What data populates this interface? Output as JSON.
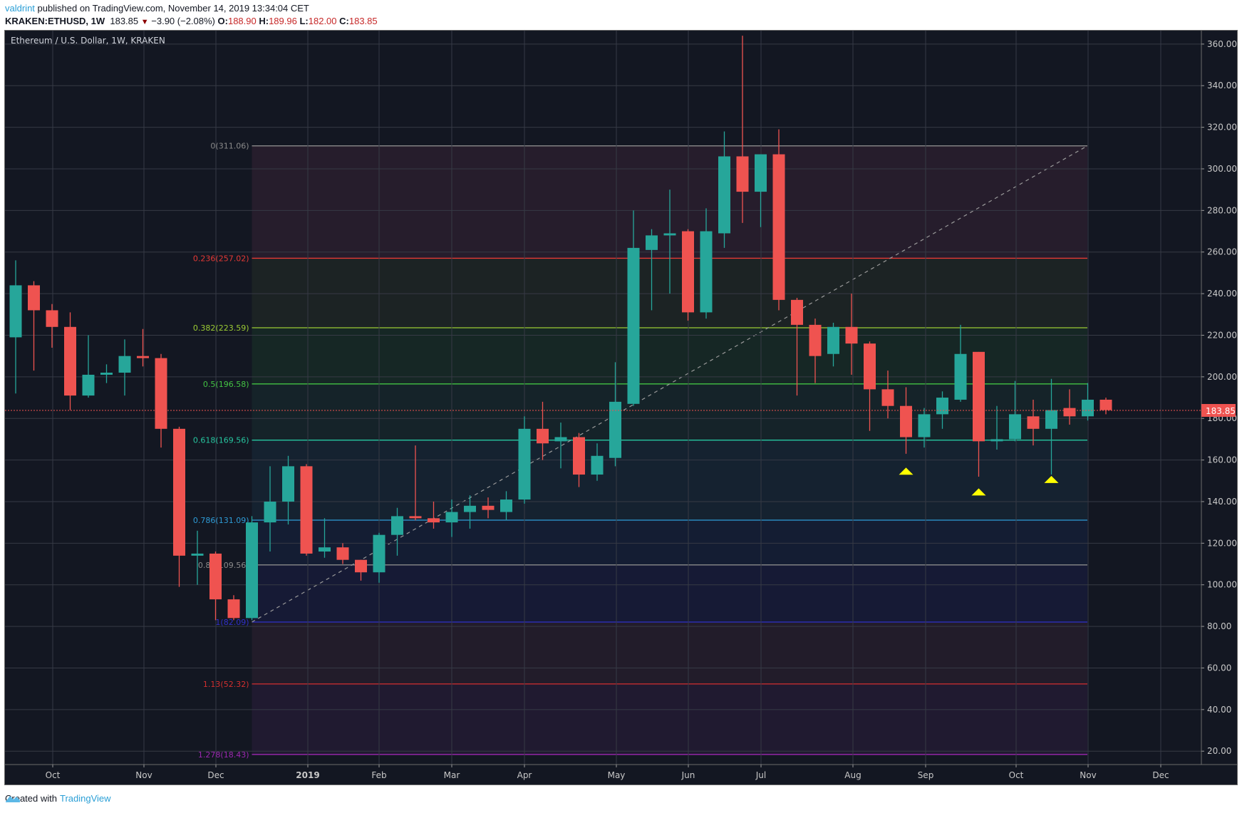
{
  "header": {
    "user": "valdrint",
    "published_text": "published on TradingView.com, November 14, 2019 13:34:04 CET",
    "symbol": "KRAKEN:ETHUSD, 1W",
    "last": "183.85",
    "change_icon": "down-triangle-icon",
    "change": "−3.90 (−2.08%)",
    "o_label": "O:",
    "o": "188.90",
    "h_label": "H:",
    "h": "189.96",
    "l_label": "L:",
    "l": "182.00",
    "c_label": "C:",
    "c": "183.85"
  },
  "chart_title": "Ethereum / U.S. Dollar, 1W, KRAKEN",
  "footer": {
    "created_with": "Created with",
    "brand": "TradingView"
  },
  "colors": {
    "up": "#26a69a",
    "down": "#ef5350",
    "background": "#131722",
    "grid": "#363a45",
    "marker": "#ffff00",
    "price_tag": "#ef5350"
  },
  "chart_data": {
    "type": "candlestick",
    "title": "Ethereum / U.S. Dollar, 1W, KRAKEN",
    "xlabel": "",
    "ylabel": "",
    "ylim": [
      10,
      366
    ],
    "y_ticks": [
      20,
      40,
      60,
      80,
      100,
      120,
      140,
      160,
      180,
      200,
      220,
      240,
      260,
      280,
      300,
      320,
      340,
      360
    ],
    "x_ticks": [
      {
        "label": "Oct",
        "idx": 2
      },
      {
        "label": "Nov",
        "idx": 7
      },
      {
        "label": "Dec",
        "idx": 11
      },
      {
        "label": "2019",
        "idx": 16
      },
      {
        "label": "Feb",
        "idx": 20
      },
      {
        "label": "Mar",
        "idx": 24
      },
      {
        "label": "Apr",
        "idx": 28
      },
      {
        "label": "May",
        "idx": 33
      },
      {
        "label": "Jun",
        "idx": 37
      },
      {
        "label": "Jul",
        "idx": 41
      },
      {
        "label": "Aug",
        "idx": 46
      },
      {
        "label": "Sep",
        "idx": 50
      },
      {
        "label": "Oct",
        "idx": 55
      },
      {
        "label": "Nov",
        "idx": 59
      },
      {
        "label": "Dec",
        "idx": 63
      }
    ],
    "last_price": 183.85,
    "candles": [
      [
        219,
        256,
        192,
        244
      ],
      [
        244,
        246,
        203,
        232
      ],
      [
        232,
        235,
        214,
        224
      ],
      [
        224,
        231,
        184,
        191
      ],
      [
        191,
        220,
        190,
        201
      ],
      [
        201,
        206,
        197,
        202
      ],
      [
        202,
        218,
        191,
        210
      ],
      [
        210,
        223,
        205,
        209
      ],
      [
        209,
        211,
        166,
        175
      ],
      [
        175,
        176,
        99,
        114
      ],
      [
        114,
        126,
        100,
        115
      ],
      [
        115,
        116,
        83,
        93
      ],
      [
        93,
        95,
        83,
        84
      ],
      [
        84,
        133,
        83,
        130
      ],
      [
        130,
        157,
        116,
        140
      ],
      [
        140,
        162,
        129,
        157
      ],
      [
        157,
        158,
        114,
        115
      ],
      [
        116,
        132,
        113,
        118
      ],
      [
        118,
        120,
        110,
        112
      ],
      [
        112,
        112,
        102,
        106
      ],
      [
        106,
        125,
        101,
        124
      ],
      [
        124,
        137,
        114,
        133
      ],
      [
        133,
        167,
        131,
        132
      ],
      [
        132,
        140,
        127,
        130
      ],
      [
        130,
        141,
        123,
        135
      ],
      [
        135,
        143,
        127,
        138
      ],
      [
        138,
        142,
        132,
        136
      ],
      [
        135,
        145,
        131,
        141
      ],
      [
        141,
        181,
        139,
        175
      ],
      [
        175,
        188,
        160,
        168
      ],
      [
        169,
        178,
        156,
        171
      ],
      [
        171,
        173,
        147,
        153
      ],
      [
        153,
        168,
        150,
        162
      ],
      [
        161,
        207,
        157,
        188
      ],
      [
        187,
        280,
        186,
        262
      ],
      [
        261,
        271,
        232,
        268
      ],
      [
        268,
        290,
        240,
        269
      ],
      [
        270,
        271,
        227,
        231
      ],
      [
        231,
        281,
        228,
        270
      ],
      [
        269,
        318,
        262,
        306
      ],
      [
        306,
        364,
        274,
        289
      ],
      [
        289,
        307,
        272,
        307
      ],
      [
        307,
        319,
        232,
        237
      ],
      [
        237,
        238,
        191,
        225
      ],
      [
        225,
        228,
        197,
        210
      ],
      [
        211,
        226,
        205,
        224
      ],
      [
        224,
        240,
        201,
        216
      ],
      [
        216,
        217,
        174,
        194
      ],
      [
        194,
        203,
        180,
        186
      ],
      [
        186,
        195,
        163,
        171
      ],
      [
        171,
        185,
        166,
        182
      ],
      [
        182,
        193,
        175,
        190
      ],
      [
        189,
        225,
        188,
        211
      ],
      [
        212,
        212,
        152,
        169
      ],
      [
        169,
        186,
        165,
        170
      ],
      [
        170,
        198,
        169,
        182
      ],
      [
        181,
        189,
        167,
        175
      ],
      [
        175,
        199,
        153,
        184
      ],
      [
        185,
        194,
        177,
        181
      ],
      [
        181,
        197,
        179,
        189
      ],
      [
        189,
        190,
        182,
        184
      ]
    ],
    "candle_format": "[open, high, low, close]",
    "fibonacci": {
      "start_idx": 13,
      "end_idx": 54,
      "levels": [
        {
          "ratio": "0",
          "price": 311.06,
          "label": "0(311.06)",
          "color": "#8a8a8a"
        },
        {
          "ratio": "0.236",
          "price": 257.02,
          "label": "0.236(257.02)",
          "color": "#e53935"
        },
        {
          "ratio": "0.382",
          "price": 223.59,
          "label": "0.382(223.59)",
          "color": "#9ccc34"
        },
        {
          "ratio": "0.5",
          "price": 196.58,
          "label": "0.5(196.58)",
          "color": "#43c343"
        },
        {
          "ratio": "0.618",
          "price": 169.56,
          "label": "0.618(169.56)",
          "color": "#26c6a0"
        },
        {
          "ratio": "0.786",
          "price": 131.09,
          "label": "0.786(131.09)",
          "color": "#2e9bd6"
        },
        {
          "ratio": "0.88",
          "price": 109.56,
          "label": "0.88(109.56)",
          "color": "#8a8a8a"
        },
        {
          "ratio": "1",
          "price": 82.09,
          "label": "1(82.09)",
          "color": "#3030c8"
        },
        {
          "ratio": "1.13",
          "price": 52.32,
          "label": "1.13(52.32)",
          "color": "#d32f2f"
        },
        {
          "ratio": "1.278",
          "price": 18.43,
          "label": "1.278(18.43)",
          "color": "#9c27b0"
        }
      ]
    },
    "markers": [
      {
        "idx": 49,
        "price": 155,
        "shape": "triangle-up",
        "color": "#ffff00"
      },
      {
        "idx": 53,
        "price": 145,
        "shape": "triangle-up",
        "color": "#ffff00"
      },
      {
        "idx": 57,
        "price": 151,
        "shape": "triangle-up",
        "color": "#ffff00"
      }
    ]
  }
}
